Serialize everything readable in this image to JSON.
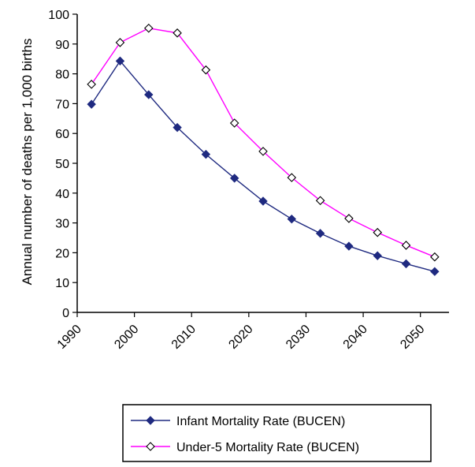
{
  "chart_data": {
    "type": "line",
    "title": "",
    "xlabel": "",
    "ylabel": "Annual number of deaths per 1,000 births",
    "xlim": [
      1990,
      2055
    ],
    "ylim": [
      0,
      100
    ],
    "x_ticks": [
      1990,
      2000,
      2010,
      2020,
      2030,
      2040,
      2050
    ],
    "y_ticks": [
      0,
      10,
      20,
      30,
      40,
      50,
      60,
      70,
      80,
      90,
      100
    ],
    "grid": false,
    "legend_position": "bottom",
    "x": [
      1992.5,
      1997.5,
      2002.5,
      2007.5,
      2012.5,
      2017.5,
      2022.5,
      2027.5,
      2032.5,
      2037.5,
      2042.5,
      2047.5,
      2052.5
    ],
    "series": [
      {
        "name": "Infant Mortality Rate (BUCEN)",
        "color": "#1f2a80",
        "marker": "diamond-filled",
        "values": [
          69.8,
          84.3,
          73.0,
          62.0,
          53.0,
          45.0,
          37.3,
          31.3,
          26.5,
          22.2,
          19.0,
          16.3,
          13.7
        ]
      },
      {
        "name": "Under-5 Mortality Rate (BUCEN)",
        "color": "#ff00ff",
        "marker": "diamond-open",
        "values": [
          76.5,
          90.5,
          95.3,
          93.7,
          81.3,
          63.5,
          54.0,
          45.2,
          37.5,
          31.5,
          26.8,
          22.5,
          18.6
        ]
      }
    ]
  }
}
